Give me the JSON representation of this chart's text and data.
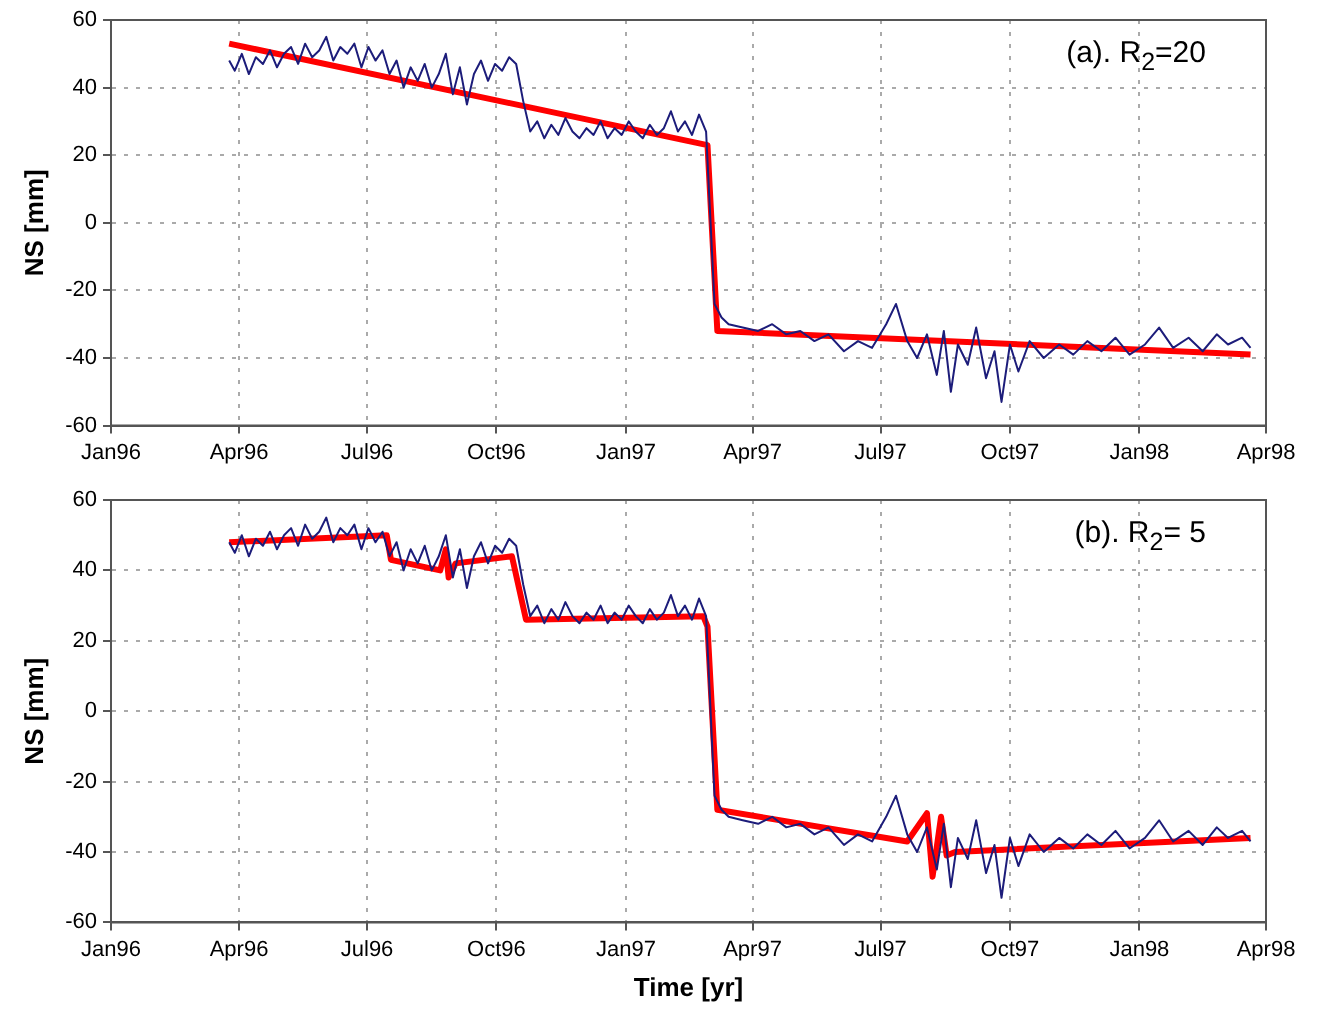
{
  "chart_data": [
    {
      "type": "line",
      "ylabel": "NS [mm]",
      "annotations": [
        "(a). R$_{2}$=20"
      ],
      "xlim": [
        "1996-01-01",
        "1998-04-01"
      ],
      "xticks": [
        {
          "value": "1996-01-01",
          "label": "Jan96"
        },
        {
          "value": "1996-04-01",
          "label": "Apr96"
        },
        {
          "value": "1996-07-01",
          "label": "Jul96"
        },
        {
          "value": "1996-10-01",
          "label": "Oct96"
        },
        {
          "value": "1997-01-01",
          "label": "Jan97"
        },
        {
          "value": "1997-04-01",
          "label": "Apr97"
        },
        {
          "value": "1997-07-01",
          "label": "Jul97"
        },
        {
          "value": "1997-10-01",
          "label": "Oct97"
        },
        {
          "value": "1998-01-01",
          "label": "Jan98"
        },
        {
          "value": "1998-04-01",
          "label": "Apr98"
        }
      ],
      "ylim": [
        -60,
        60
      ],
      "yticks": [
        -60,
        -40,
        -20,
        0,
        20,
        40,
        60
      ],
      "grid": true,
      "legend": false,
      "marker": "none",
      "line_style": "solid",
      "series": [
        {
          "color": "#1c1c7a",
          "x": [
            "1996-03-25",
            "1996-03-29",
            "1996-04-03",
            "1996-04-08",
            "1996-04-13",
            "1996-04-18",
            "1996-04-23",
            "1996-04-28",
            "1996-05-03",
            "1996-05-08",
            "1996-05-13",
            "1996-05-18",
            "1996-05-23",
            "1996-05-28",
            "1996-06-02",
            "1996-06-07",
            "1996-06-12",
            "1996-06-17",
            "1996-06-22",
            "1996-06-27",
            "1996-07-02",
            "1996-07-07",
            "1996-07-12",
            "1996-07-17",
            "1996-07-22",
            "1996-07-27",
            "1996-08-01",
            "1996-08-06",
            "1996-08-11",
            "1996-08-16",
            "1996-08-21",
            "1996-08-26",
            "1996-08-31",
            "1996-09-05",
            "1996-09-10",
            "1996-09-15",
            "1996-09-20",
            "1996-09-25",
            "1996-09-30",
            "1996-10-05",
            "1996-10-10",
            "1996-10-15",
            "1996-10-20",
            "1996-10-25",
            "1996-10-30",
            "1996-11-04",
            "1996-11-09",
            "1996-11-14",
            "1996-11-19",
            "1996-11-24",
            "1996-11-29",
            "1996-12-04",
            "1996-12-09",
            "1996-12-14",
            "1996-12-19",
            "1996-12-24",
            "1996-12-29",
            "1997-01-03",
            "1997-01-08",
            "1997-01-13",
            "1997-01-18",
            "1997-01-23",
            "1997-01-28",
            "1997-02-02",
            "1997-02-07",
            "1997-02-12",
            "1997-02-17",
            "1997-02-22",
            "1997-02-27",
            "1997-03-05",
            "1997-03-10",
            "1997-03-15",
            "1997-03-25",
            "1997-04-05",
            "1997-04-15",
            "1997-04-25",
            "1997-05-05",
            "1997-05-15",
            "1997-05-25",
            "1997-06-05",
            "1997-06-15",
            "1997-06-25",
            "1997-07-05",
            "1997-07-12",
            "1997-07-20",
            "1997-07-27",
            "1997-08-03",
            "1997-08-10",
            "1997-08-15",
            "1997-08-20",
            "1997-08-25",
            "1997-09-01",
            "1997-09-07",
            "1997-09-14",
            "1997-09-20",
            "1997-09-25",
            "1997-10-01",
            "1997-10-07",
            "1997-10-15",
            "1997-10-25",
            "1997-11-05",
            "1997-11-15",
            "1997-11-25",
            "1997-12-05",
            "1997-12-15",
            "1997-12-25",
            "1998-01-05",
            "1998-01-15",
            "1998-01-25",
            "1998-02-05",
            "1998-02-15",
            "1998-02-25",
            "1998-03-05",
            "1998-03-15",
            "1998-03-21"
          ],
          "values": [
            48,
            45,
            50,
            44,
            49,
            47,
            51,
            46,
            50,
            52,
            47,
            53,
            49,
            51,
            55,
            48,
            52,
            50,
            53,
            46,
            52,
            48,
            51,
            44,
            48,
            40,
            46,
            42,
            47,
            40,
            44,
            50,
            38,
            46,
            35,
            44,
            48,
            42,
            47,
            45,
            49,
            47,
            36,
            27,
            30,
            25,
            29,
            26,
            31,
            27,
            25,
            28,
            26,
            30,
            25,
            28,
            26,
            30,
            27,
            25,
            29,
            26,
            28,
            33,
            27,
            30,
            26,
            32,
            27,
            -24,
            -28,
            -30,
            -31,
            -32,
            -30,
            -33,
            -32,
            -35,
            -33,
            -38,
            -35,
            -37,
            -30,
            -24,
            -35,
            -40,
            -33,
            -45,
            -32,
            -50,
            -36,
            -42,
            -31,
            -46,
            -38,
            -53,
            -36,
            -44,
            -35,
            -40,
            -36,
            -39,
            -35,
            -38,
            -34,
            -39,
            -36,
            -31,
            -37,
            -34,
            -38,
            -33,
            -36,
            -34,
            -37
          ]
        },
        {
          "color": "#ff0000",
          "x": [
            "1996-03-25",
            "1997-02-28",
            "1997-03-07",
            "1998-03-21"
          ],
          "values": [
            53,
            23,
            -32,
            -39
          ]
        }
      ]
    },
    {
      "type": "line",
      "xlabel": "Time [yr]",
      "ylabel": "NS [mm]",
      "annotations": [
        "(b). R$_{2}$= 5"
      ],
      "xlim": [
        "1996-01-01",
        "1998-04-01"
      ],
      "xticks": [
        {
          "value": "1996-01-01",
          "label": "Jan96"
        },
        {
          "value": "1996-04-01",
          "label": "Apr96"
        },
        {
          "value": "1996-07-01",
          "label": "Jul96"
        },
        {
          "value": "1996-10-01",
          "label": "Oct96"
        },
        {
          "value": "1997-01-01",
          "label": "Jan97"
        },
        {
          "value": "1997-04-01",
          "label": "Apr97"
        },
        {
          "value": "1997-07-01",
          "label": "Jul97"
        },
        {
          "value": "1997-10-01",
          "label": "Oct97"
        },
        {
          "value": "1998-01-01",
          "label": "Jan98"
        },
        {
          "value": "1998-04-01",
          "label": "Apr98"
        }
      ],
      "ylim": [
        -60,
        60
      ],
      "yticks": [
        -60,
        -40,
        -20,
        0,
        20,
        40,
        60
      ],
      "grid": true,
      "legend": false,
      "marker": "none",
      "line_style": "solid",
      "series": [
        {
          "color": "#1c1c7a",
          "x": [
            "1996-03-25",
            "1996-03-29",
            "1996-04-03",
            "1996-04-08",
            "1996-04-13",
            "1996-04-18",
            "1996-04-23",
            "1996-04-28",
            "1996-05-03",
            "1996-05-08",
            "1996-05-13",
            "1996-05-18",
            "1996-05-23",
            "1996-05-28",
            "1996-06-02",
            "1996-06-07",
            "1996-06-12",
            "1996-06-17",
            "1996-06-22",
            "1996-06-27",
            "1996-07-02",
            "1996-07-07",
            "1996-07-12",
            "1996-07-17",
            "1996-07-22",
            "1996-07-27",
            "1996-08-01",
            "1996-08-06",
            "1996-08-11",
            "1996-08-16",
            "1996-08-21",
            "1996-08-26",
            "1996-08-31",
            "1996-09-05",
            "1996-09-10",
            "1996-09-15",
            "1996-09-20",
            "1996-09-25",
            "1996-09-30",
            "1996-10-05",
            "1996-10-10",
            "1996-10-15",
            "1996-10-20",
            "1996-10-25",
            "1996-10-30",
            "1996-11-04",
            "1996-11-09",
            "1996-11-14",
            "1996-11-19",
            "1996-11-24",
            "1996-11-29",
            "1996-12-04",
            "1996-12-09",
            "1996-12-14",
            "1996-12-19",
            "1996-12-24",
            "1996-12-29",
            "1997-01-03",
            "1997-01-08",
            "1997-01-13",
            "1997-01-18",
            "1997-01-23",
            "1997-01-28",
            "1997-02-02",
            "1997-02-07",
            "1997-02-12",
            "1997-02-17",
            "1997-02-22",
            "1997-02-27",
            "1997-03-05",
            "1997-03-10",
            "1997-03-15",
            "1997-03-25",
            "1997-04-05",
            "1997-04-15",
            "1997-04-25",
            "1997-05-05",
            "1997-05-15",
            "1997-05-25",
            "1997-06-05",
            "1997-06-15",
            "1997-06-25",
            "1997-07-05",
            "1997-07-12",
            "1997-07-20",
            "1997-07-27",
            "1997-08-03",
            "1997-08-10",
            "1997-08-15",
            "1997-08-20",
            "1997-08-25",
            "1997-09-01",
            "1997-09-07",
            "1997-09-14",
            "1997-09-20",
            "1997-09-25",
            "1997-10-01",
            "1997-10-07",
            "1997-10-15",
            "1997-10-25",
            "1997-11-05",
            "1997-11-15",
            "1997-11-25",
            "1997-12-05",
            "1997-12-15",
            "1997-12-25",
            "1998-01-05",
            "1998-01-15",
            "1998-01-25",
            "1998-02-05",
            "1998-02-15",
            "1998-02-25",
            "1998-03-05",
            "1998-03-15",
            "1998-03-21"
          ],
          "values": [
            48,
            45,
            50,
            44,
            49,
            47,
            51,
            46,
            50,
            52,
            47,
            53,
            49,
            51,
            55,
            48,
            52,
            50,
            53,
            46,
            52,
            48,
            51,
            44,
            48,
            40,
            46,
            42,
            47,
            40,
            44,
            50,
            38,
            46,
            35,
            44,
            48,
            42,
            47,
            45,
            49,
            47,
            36,
            27,
            30,
            25,
            29,
            26,
            31,
            27,
            25,
            28,
            26,
            30,
            25,
            28,
            26,
            30,
            27,
            25,
            29,
            26,
            28,
            33,
            27,
            30,
            26,
            32,
            27,
            -24,
            -28,
            -30,
            -31,
            -32,
            -30,
            -33,
            -32,
            -35,
            -33,
            -38,
            -35,
            -37,
            -30,
            -24,
            -35,
            -40,
            -33,
            -45,
            -32,
            -50,
            -36,
            -42,
            -31,
            -46,
            -38,
            -53,
            -36,
            -44,
            -35,
            -40,
            -36,
            -39,
            -35,
            -38,
            -34,
            -39,
            -36,
            -31,
            -37,
            -34,
            -38,
            -33,
            -36,
            -34,
            -37
          ]
        },
        {
          "color": "#ff0000",
          "x": [
            "1996-03-25",
            "1996-07-15",
            "1996-07-18",
            "1996-08-22",
            "1996-08-26",
            "1996-08-28",
            "1996-09-02",
            "1996-10-12",
            "1996-10-22",
            "1997-02-25",
            "1997-02-28",
            "1997-03-07",
            "1997-07-20",
            "1997-08-03",
            "1997-08-07",
            "1997-08-13",
            "1997-08-17",
            "1997-08-23",
            "1998-03-21"
          ],
          "values": [
            48,
            50,
            43,
            40,
            46,
            38,
            42,
            44,
            26,
            27,
            24,
            -28,
            -37,
            -29,
            -47,
            -30,
            -41,
            -40,
            -36
          ]
        }
      ]
    }
  ]
}
